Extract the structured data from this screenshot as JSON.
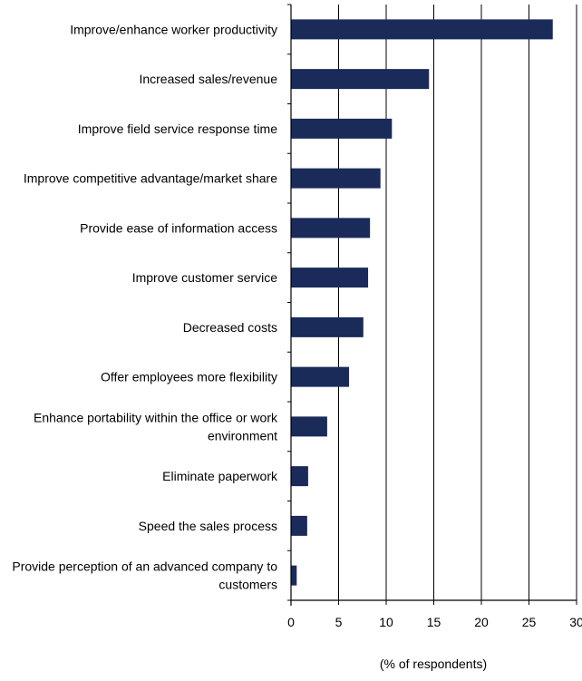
{
  "chart_data": {
    "type": "bar",
    "orientation": "horizontal",
    "categories": [
      "Improve/enhance worker productivity",
      "Increased sales/revenue",
      "Improve field service response time",
      "Improve competitive advantage/market share",
      "Provide ease of information access",
      "Improve customer service",
      "Decreased costs",
      "Offer employees more flexibility",
      "Enhance portability within the office or work environment",
      "Eliminate paperwork",
      "Speed the sales process",
      "Provide perception of an advanced company to customers"
    ],
    "category_lines": [
      [
        "Improve/enhance worker productivity"
      ],
      [
        "Increased sales/revenue"
      ],
      [
        "Improve field service response time"
      ],
      [
        "Improve competitive advantage/market share"
      ],
      [
        "Provide ease of information access"
      ],
      [
        "Improve customer service"
      ],
      [
        "Decreased costs"
      ],
      [
        "Offer employees more flexibility"
      ],
      [
        "Enhance portability within the office or work",
        "environment"
      ],
      [
        "Eliminate paperwork"
      ],
      [
        "Speed the sales process"
      ],
      [
        "Provide perception of an advanced company to",
        "customers"
      ]
    ],
    "values": [
      27.5,
      14.5,
      10.6,
      9.4,
      8.3,
      8.1,
      7.6,
      6.1,
      3.8,
      1.8,
      1.7,
      0.6
    ],
    "xlabel": "(% of respondents)",
    "ylabel": "",
    "xlim": [
      0,
      30
    ],
    "xticks": [
      0,
      5,
      10,
      15,
      20,
      25,
      30
    ],
    "grid": "vertical",
    "bar_color": "#1a2b5a",
    "grid_color": "#000000"
  }
}
